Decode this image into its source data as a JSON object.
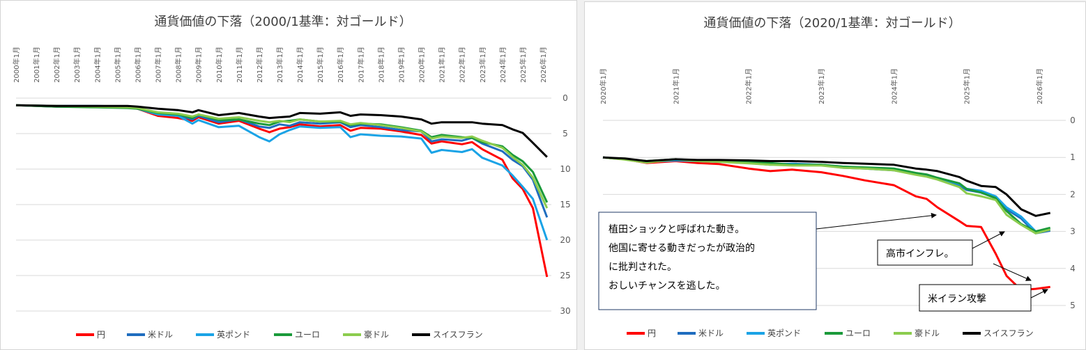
{
  "colors": {
    "円": "#ff0000",
    "米ドル": "#1f6dbf",
    "英ポンド": "#1aa3e6",
    "ユーロ": "#1a9a3a",
    "豪ドル": "#8ccc4e",
    "スイスフラン": "#000000"
  },
  "chart_data": [
    {
      "type": "line",
      "title": "通貨価値の下落（2000/1基準：対ゴールド）",
      "x_ticks": [
        "2000年1月",
        "2001年1月",
        "2002年1月",
        "2003年1月",
        "2004年1月",
        "2005年1月",
        "2006年1月",
        "2007年1月",
        "2008年1月",
        "2009年1月",
        "2010年1月",
        "2011年1月",
        "2012年1月",
        "2013年1月",
        "2014年1月",
        "2015年1月",
        "2016年1月",
        "2017年1月",
        "2018年1月",
        "2019年1月",
        "2020年1月",
        "2021年1月",
        "2022年1月",
        "2023年1月",
        "2024年1月",
        "2025年1月",
        "2026年1月"
      ],
      "y_ticks": [
        "0",
        "5",
        "10",
        "15",
        "20",
        "25",
        "30"
      ],
      "ylim": [
        0,
        30
      ],
      "y_reversed": true,
      "grid": true,
      "legend_position": "bottom",
      "x": [
        2000,
        2002,
        2004,
        2005.5,
        2006,
        2007,
        2008,
        2008.7,
        2009,
        2010,
        2011,
        2012,
        2012.5,
        2013,
        2013.5,
        2014,
        2015,
        2016,
        2016.5,
        2017,
        2018,
        2019,
        2020,
        2020.5,
        2021,
        2022,
        2022.5,
        2023,
        2024,
        2024.5,
        2025,
        2025.5,
        2026.2
      ],
      "series": [
        {
          "name": "円",
          "values": [
            1,
            1.2,
            1.2,
            1.3,
            1.5,
            2.5,
            2.8,
            3.2,
            2.7,
            3.6,
            3.2,
            4.3,
            4.8,
            4.3,
            4.1,
            3.7,
            4,
            3.8,
            4.6,
            4.2,
            4.3,
            4.7,
            5.2,
            6.4,
            6.1,
            6.5,
            6.2,
            7.2,
            8.7,
            11.3,
            12.8,
            15.5,
            25.2
          ]
        },
        {
          "name": "米ドル",
          "values": [
            1,
            1.1,
            1.1,
            1.2,
            1.4,
            2.2,
            2.4,
            3,
            2.5,
            3.4,
            3,
            4,
            4.2,
            3.7,
            3.9,
            3.4,
            3.6,
            3.4,
            4.1,
            3.8,
            4.1,
            4.5,
            4.7,
            6.1,
            5.8,
            6,
            5.6,
            6.4,
            7.5,
            8.7,
            9.6,
            11.5,
            16.8
          ]
        },
        {
          "name": "英ポンド",
          "values": [
            1,
            1.2,
            1.2,
            1.3,
            1.5,
            2.3,
            2.5,
            3.6,
            3.1,
            4.1,
            3.9,
            5.5,
            6.1,
            5.1,
            4.5,
            4,
            4.2,
            4.1,
            5.5,
            5.1,
            5.3,
            5.4,
            5.7,
            7.7,
            7.3,
            7.6,
            7.2,
            8.4,
            9.5,
            10.9,
            12.5,
            14.2,
            20
          ]
        },
        {
          "name": "ユーロ",
          "values": [
            1,
            1.2,
            1.3,
            1.4,
            1.5,
            2.1,
            2.3,
            2.8,
            2.3,
            3.1,
            3,
            3.6,
            3.8,
            3.3,
            3.2,
            3,
            3.3,
            3.3,
            3.8,
            3.6,
            3.7,
            4.1,
            4.6,
            5.5,
            5.2,
            5.5,
            5.6,
            6.2,
            6.8,
            8,
            8.9,
            10.4,
            14.7
          ]
        },
        {
          "name": "豪ドル",
          "values": [
            1,
            1.1,
            1.2,
            1.3,
            1.4,
            2,
            2.2,
            2.6,
            2.3,
            2.9,
            2.7,
            3.2,
            3.4,
            3.2,
            3.4,
            3,
            3.3,
            3.2,
            3.7,
            3.5,
            3.8,
            4.2,
            4.7,
            5.7,
            5.4,
            5.6,
            5.4,
            6,
            7,
            8.3,
            9.4,
            11.2,
            15.5
          ]
        },
        {
          "name": "スイスフラン",
          "values": [
            1,
            1.1,
            1.1,
            1.1,
            1.2,
            1.5,
            1.7,
            2,
            1.7,
            2.4,
            2.1,
            2.6,
            2.8,
            2.7,
            2.6,
            2.1,
            2.2,
            2,
            2.5,
            2.3,
            2.4,
            2.6,
            3,
            3.6,
            3.4,
            3.4,
            3.4,
            3.6,
            3.8,
            4.4,
            4.9,
            6.3,
            8.3
          ]
        }
      ]
    },
    {
      "type": "line",
      "title": "通貨価値の下落（2020/1基準：対ゴールド）",
      "x_ticks": [
        "2020年1月",
        "2021年1月",
        "2022年1月",
        "2023年1月",
        "2024年1月",
        "2025年1月",
        "2026年1月"
      ],
      "y_ticks": [
        "0",
        "1",
        "2",
        "3",
        "4",
        "5"
      ],
      "ylim": [
        0,
        5
      ],
      "y_reversed": true,
      "grid": true,
      "legend_position": "bottom",
      "x": [
        2020,
        2020.3,
        2020.6,
        2021,
        2021.3,
        2021.6,
        2022,
        2022.3,
        2022.6,
        2023,
        2023.3,
        2023.6,
        2024,
        2024.3,
        2024.45,
        2024.6,
        2024.9,
        2025,
        2025.2,
        2025.4,
        2025.55,
        2025.75,
        2025.95,
        2026.15
      ],
      "series": [
        {
          "name": "円",
          "values": [
            1,
            1.05,
            1.15,
            1.1,
            1.15,
            1.18,
            1.3,
            1.37,
            1.33,
            1.4,
            1.5,
            1.62,
            1.75,
            2.05,
            2.12,
            2.35,
            2.72,
            2.85,
            2.88,
            3.6,
            4.2,
            4.58,
            4.55,
            4.5
          ]
        },
        {
          "name": "米ドル",
          "values": [
            1,
            1.05,
            1.12,
            1.08,
            1.1,
            1.1,
            1.15,
            1.2,
            1.17,
            1.2,
            1.28,
            1.3,
            1.35,
            1.45,
            1.5,
            1.58,
            1.75,
            1.88,
            1.95,
            2.1,
            2.4,
            2.65,
            3.05,
            2.98
          ]
        },
        {
          "name": "英ポンド",
          "values": [
            1,
            1.05,
            1.12,
            1.08,
            1.1,
            1.12,
            1.15,
            1.18,
            1.18,
            1.2,
            1.25,
            1.28,
            1.33,
            1.43,
            1.48,
            1.56,
            1.72,
            1.85,
            1.9,
            2.05,
            2.35,
            2.6,
            3,
            2.93
          ]
        },
        {
          "name": "ユーロ",
          "values": [
            1,
            1.05,
            1.1,
            1.05,
            1.08,
            1.1,
            1.12,
            1.15,
            1.2,
            1.2,
            1.25,
            1.27,
            1.3,
            1.42,
            1.46,
            1.55,
            1.7,
            1.85,
            1.95,
            2.1,
            2.45,
            2.8,
            3.0,
            2.9
          ]
        },
        {
          "name": "豪ドル",
          "values": [
            1,
            1.06,
            1.14,
            1.05,
            1.1,
            1.12,
            1.16,
            1.2,
            1.22,
            1.22,
            1.28,
            1.3,
            1.35,
            1.47,
            1.52,
            1.6,
            1.8,
            1.97,
            2.05,
            2.15,
            2.55,
            2.82,
            3.05,
            2.95
          ]
        },
        {
          "name": "スイスフラン",
          "values": [
            1,
            1.03,
            1.1,
            1.05,
            1.07,
            1.07,
            1.08,
            1.1,
            1.1,
            1.12,
            1.15,
            1.17,
            1.2,
            1.3,
            1.33,
            1.37,
            1.53,
            1.63,
            1.77,
            1.8,
            2.0,
            2.4,
            2.58,
            2.5
          ]
        }
      ],
      "annotations": [
        {
          "text": [
            "植田ショックと呼ばれた動き。",
            "他国に寄せる動きだったが政治的",
            "に批判された。",
            "おしいチャンスを逃した。"
          ]
        },
        {
          "text": [
            "高市インフレ。"
          ]
        },
        {
          "text": [
            "米イラン攻撃"
          ]
        }
      ]
    }
  ]
}
